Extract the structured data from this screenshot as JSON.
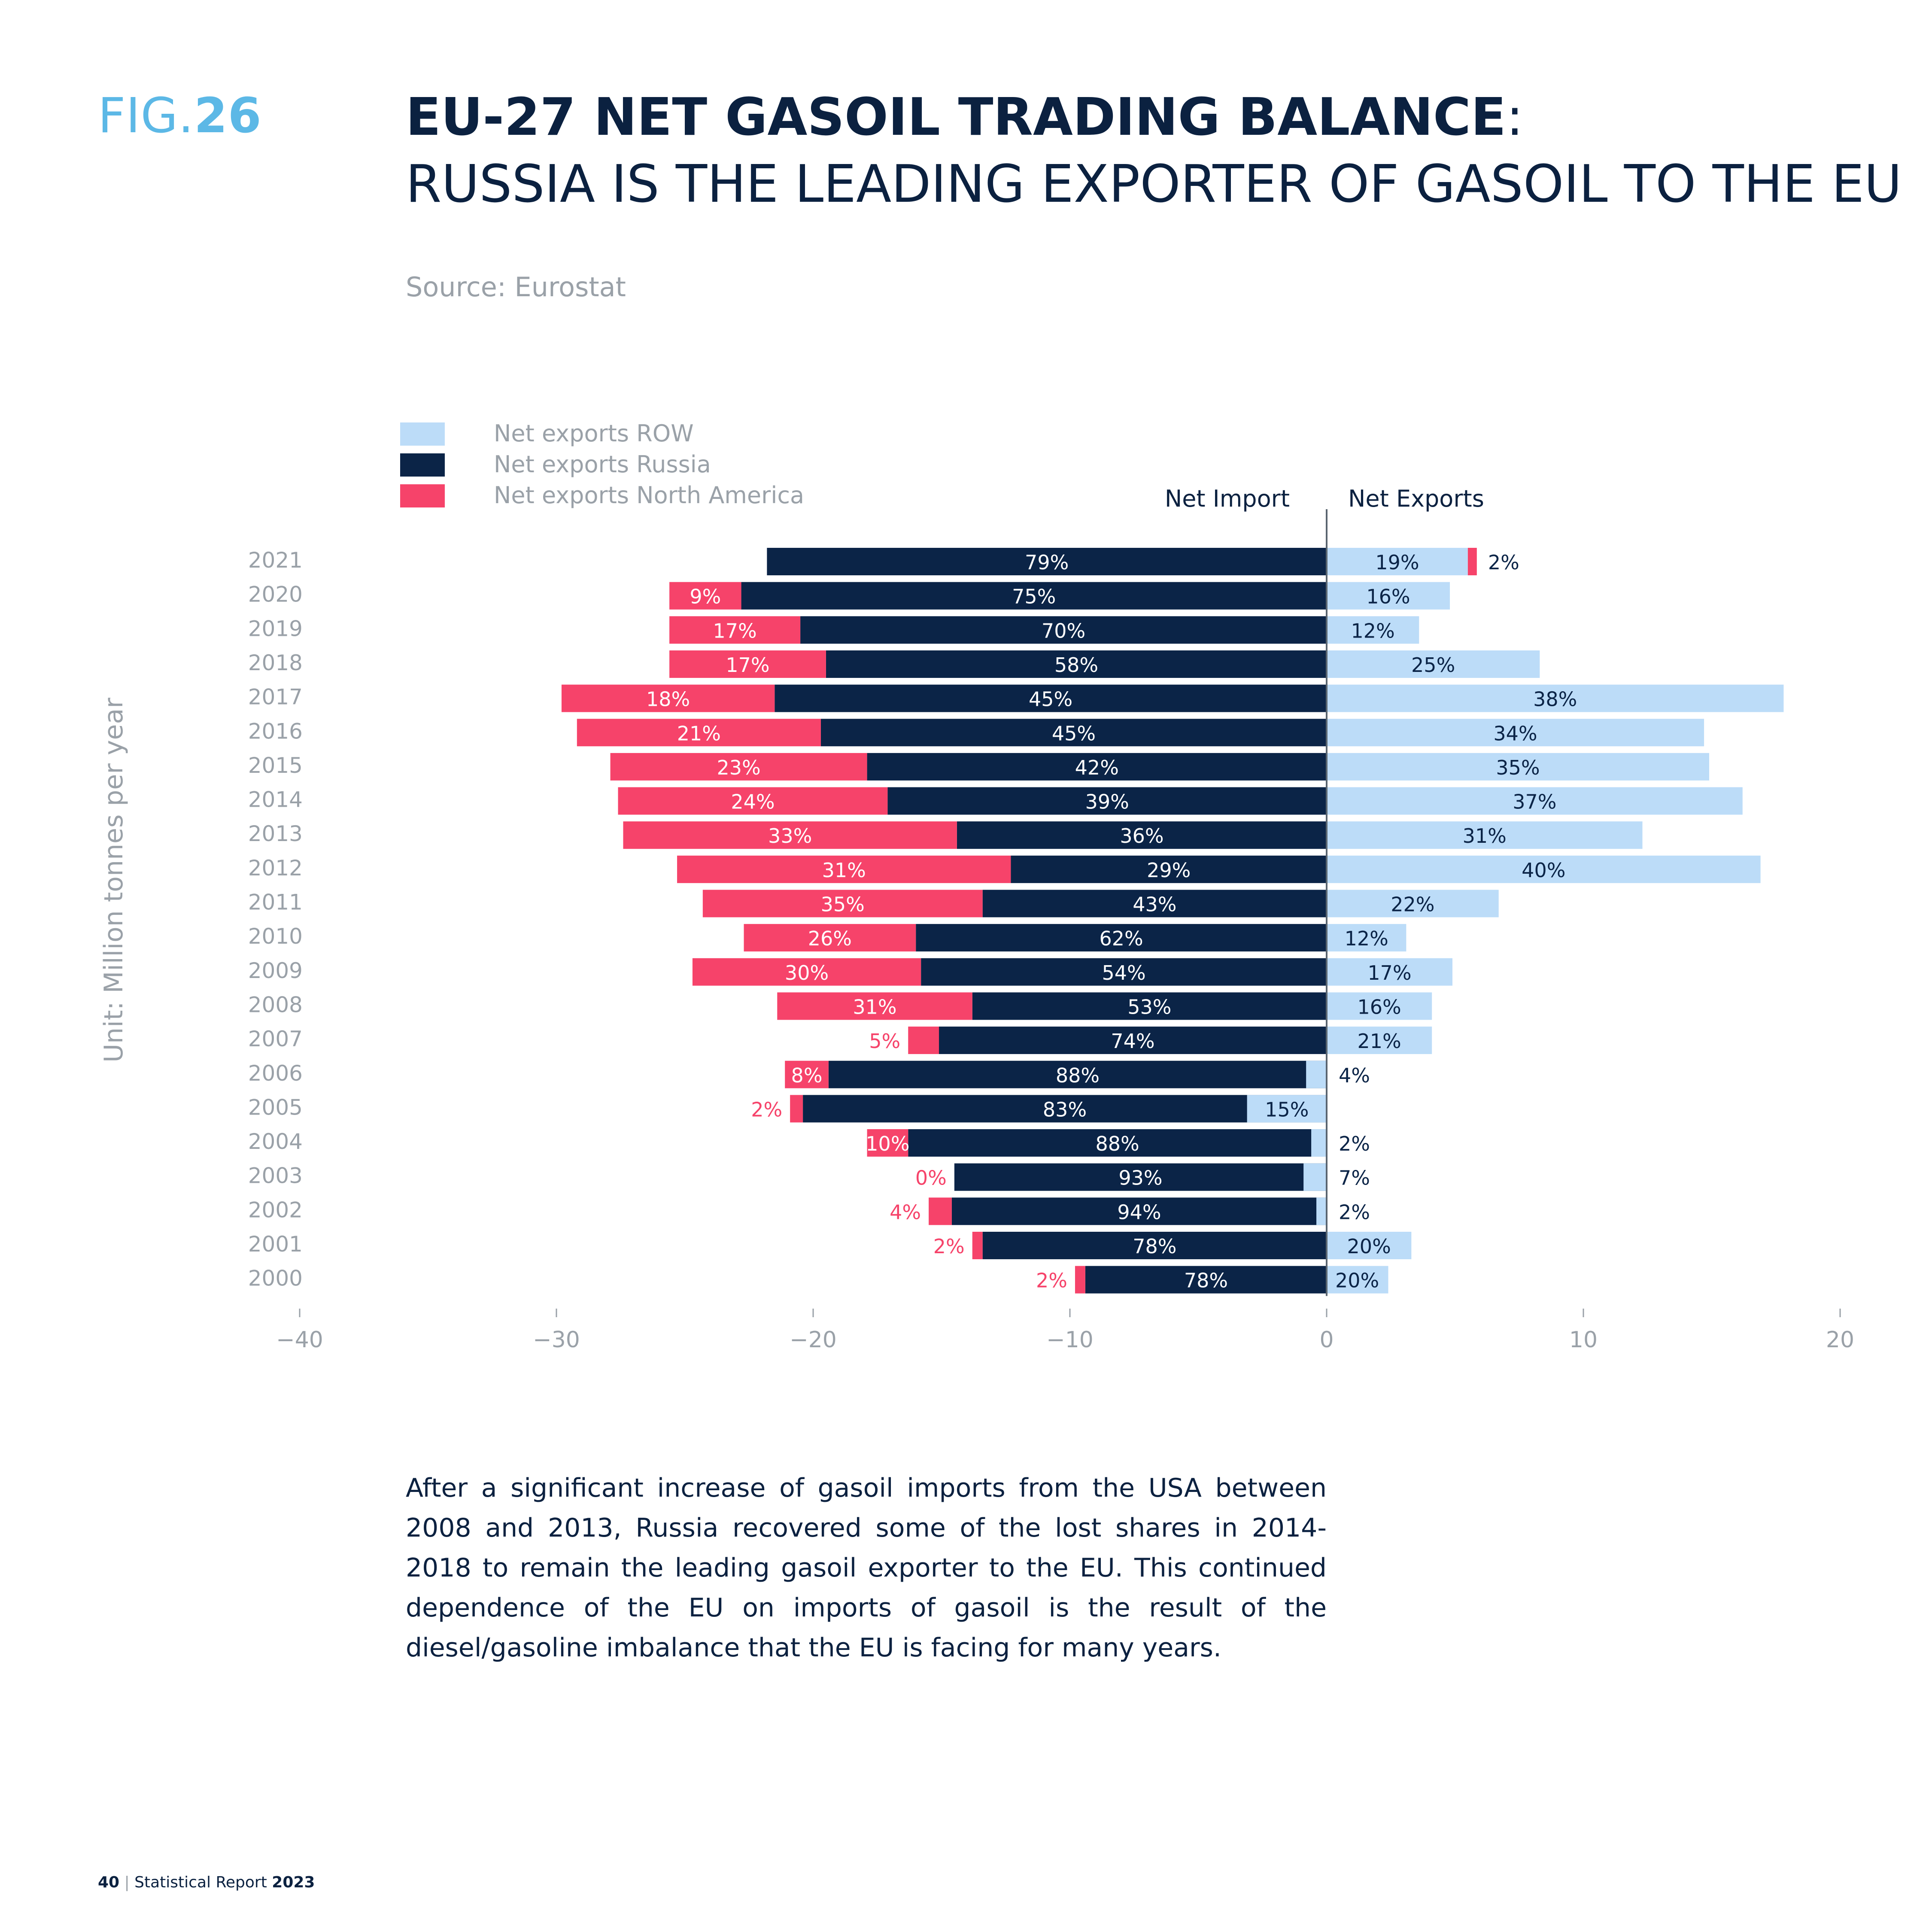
{
  "figure": {
    "label_prefix": "FIG.",
    "label_number": "26",
    "title_bold": "EU-27 NET GASOIL TRADING BALANCE",
    "title_colon": ":",
    "title_sub": "RUSSIA IS THE LEADING EXPORTER OF GASOIL TO THE EU",
    "source": "Source: Eurostat",
    "commentary": "After a significant increase of gasoil imports from the USA between 2008 and 2013, Russia recovered some of the lost shares in 2014-2018 to remain the leading gasoil exporter to the EU. This continued dependence of the EU on imports of gasoil is the result of the diesel/gasoline imbalance that the EU is facing for many years."
  },
  "footer": {
    "page": "40",
    "separator": "|",
    "report": "Statistical Report",
    "year": "2023"
  },
  "colors": {
    "row": "#bcdcf8",
    "russia": "#0b2447",
    "north_america": "#f6436a",
    "title": "#0b2140",
    "fig_label": "#5cb8e6",
    "muted": "#9aa1a8"
  },
  "chart_data": {
    "type": "bar",
    "orientation": "horizontal",
    "stacked": true,
    "ylabel": "Unit: Million tonnes per year",
    "xlim": [
      -40,
      20
    ],
    "xticks": [
      -40,
      -30,
      -20,
      -10,
      0,
      10,
      20
    ],
    "divider_labels": {
      "left": "Net Import",
      "right": "Net Exports"
    },
    "legend": {
      "position": "top-left",
      "entries": [
        {
          "key": "row",
          "label": "Net exports ROW"
        },
        {
          "key": "russia",
          "label": "Net exports Russia"
        },
        {
          "key": "north_america",
          "label": "Net exports North America"
        }
      ]
    },
    "categories": [
      "2021",
      "2020",
      "2019",
      "2018",
      "2017",
      "2016",
      "2015",
      "2014",
      "2013",
      "2012",
      "2011",
      "2010",
      "2009",
      "2008",
      "2007",
      "2006",
      "2005",
      "2004",
      "2003",
      "2002",
      "2001",
      "2000"
    ],
    "series": [
      {
        "name": "Net exports Russia",
        "key": "russia",
        "values": [
          -21.8,
          -22.8,
          -20.5,
          -19.5,
          -21.5,
          -19.7,
          -17.9,
          -17.1,
          -14.4,
          -12.3,
          -13.4,
          -16.0,
          -15.8,
          -13.8,
          -15.1,
          -19.4,
          -20.4,
          -16.3,
          -14.5,
          -14.6,
          -13.4,
          -9.4
        ],
        "labels": [
          "79%",
          "75%",
          "70%",
          "58%",
          "45%",
          "45%",
          "42%",
          "39%",
          "36%",
          "29%",
          "43%",
          "62%",
          "54%",
          "53%",
          "74%",
          "88%",
          "83%",
          "88%",
          "93%",
          "94%",
          "78%",
          "78%"
        ]
      },
      {
        "name": "Net exports North America",
        "key": "north_america",
        "values": [
          0,
          -2.8,
          -5.1,
          -6.1,
          -8.3,
          -9.5,
          -10.0,
          -10.5,
          -13.0,
          -13.0,
          -10.9,
          -6.7,
          -8.9,
          -7.6,
          -1.2,
          -1.7,
          -0.5,
          -1.6,
          0,
          -0.9,
          -0.4,
          -0.4
        ],
        "labels": [
          "",
          "9%",
          "17%",
          "17%",
          "18%",
          "21%",
          "23%",
          "24%",
          "33%",
          "31%",
          "35%",
          "26%",
          "30%",
          "31%",
          "5%",
          "8%",
          "2%",
          "10%",
          "0%",
          "4%",
          "2%",
          "2%"
        ]
      },
      {
        "name": "Net exports ROW",
        "key": "row",
        "values": [
          5.5,
          4.8,
          3.6,
          8.3,
          17.8,
          14.7,
          14.9,
          16.2,
          12.3,
          16.9,
          6.7,
          3.1,
          4.9,
          4.1,
          4.1,
          -0.8,
          -3.1,
          -0.6,
          -0.9,
          -0.4,
          3.3,
          2.4
        ],
        "labels": [
          "19%",
          "16%",
          "12%",
          "25%",
          "38%",
          "34%",
          "35%",
          "37%",
          "31%",
          "40%",
          "22%",
          "12%",
          "17%",
          "16%",
          "21%",
          "4%",
          "15%",
          "2%",
          "7%",
          "2%",
          "20%",
          "20%"
        ]
      },
      {
        "name": "Net exports North America (export side)",
        "key": "north_america",
        "values": [
          0.35,
          0,
          0,
          0,
          0,
          0,
          0,
          0,
          0,
          0,
          0,
          0,
          0,
          0,
          0,
          0,
          0,
          0,
          0,
          0,
          0,
          0
        ],
        "labels": [
          "2%",
          "",
          "",
          "",
          "",
          "",
          "",
          "",
          "",
          "",
          "",
          "",
          "",
          "",
          "",
          "",
          "",
          "",
          "",
          "",
          "",
          ""
        ]
      }
    ]
  }
}
